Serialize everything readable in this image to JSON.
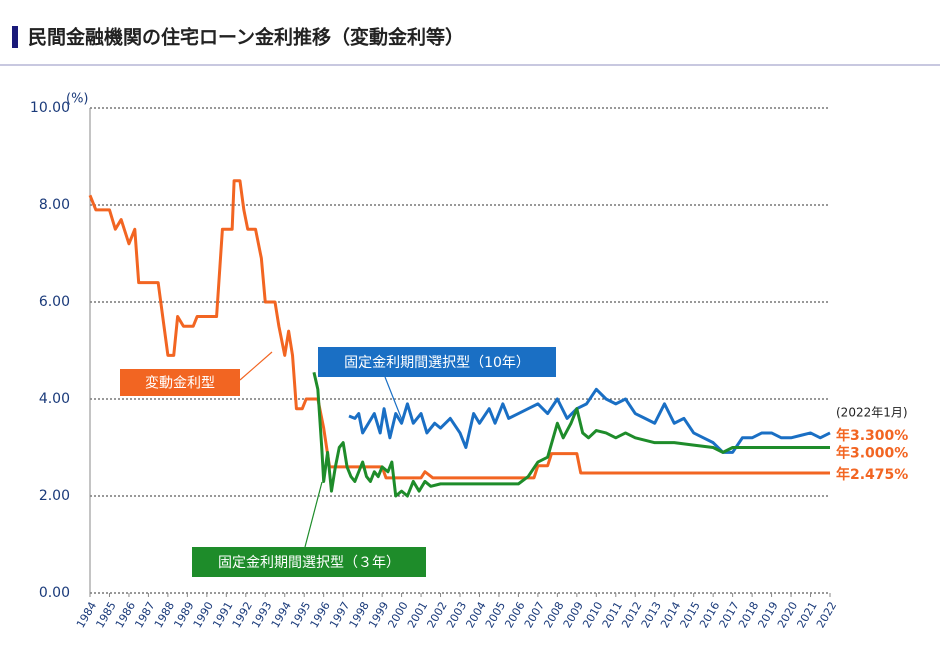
{
  "chart_data": {
    "type": "line",
    "title": "民間金融機関の住宅ローン金利推移（変動金利等）",
    "ylabel": "(%)",
    "date_note": "(2022年1月)",
    "end_labels": [
      {
        "text": "年3.300%",
        "value": 3.3
      },
      {
        "text": "年3.000%",
        "value": 3.0
      },
      {
        "text": "年2.475%",
        "value": 2.475
      }
    ],
    "end_label_color": "#f26522",
    "xlim": [
      1984,
      2022
    ],
    "xticks": [
      1984,
      1985,
      1986,
      1987,
      1988,
      1989,
      1990,
      1991,
      1992,
      1993,
      1994,
      1995,
      1996,
      1997,
      1998,
      1999,
      2000,
      2001,
      2002,
      2003,
      2004,
      2005,
      2006,
      2007,
      2008,
      2009,
      2010,
      2011,
      2012,
      2013,
      2014,
      2015,
      2016,
      2017,
      2018,
      2019,
      2020,
      2021,
      2022
    ],
    "ylim": [
      0,
      10
    ],
    "yticks": [
      {
        "value": 0,
        "label": "0.00"
      },
      {
        "value": 2,
        "label": "2.00"
      },
      {
        "value": 4,
        "label": "4.00"
      },
      {
        "value": 6,
        "label": "6.00"
      },
      {
        "value": 8,
        "label": "8.00"
      },
      {
        "value": 10,
        "label": "10.00"
      }
    ],
    "grid": true,
    "series": [
      {
        "name": "変動金利型",
        "color": "#f26522",
        "x": [
          1984.0,
          1984.3,
          1985.0,
          1985.3,
          1985.6,
          1986.0,
          1986.3,
          1986.5,
          1987.5,
          1987.8,
          1988.0,
          1988.3,
          1988.5,
          1988.8,
          1989.3,
          1989.5,
          1990.5,
          1990.8,
          1991.3,
          1991.4,
          1991.7,
          1991.9,
          1992.1,
          1992.5,
          1992.8,
          1993.0,
          1993.5,
          1993.7,
          1994.0,
          1994.2,
          1994.4,
          1994.6,
          1994.9,
          1995.1,
          1995.7,
          1996.0,
          1996.3,
          1999.0,
          1999.2,
          2001.0,
          2001.2,
          2001.6,
          2006.8,
          2007.0,
          2007.5,
          2007.7,
          2009.0,
          2009.2,
          2022.0
        ],
        "values": [
          8.2,
          7.9,
          7.9,
          7.5,
          7.7,
          7.2,
          7.5,
          6.4,
          6.4,
          5.5,
          4.9,
          4.9,
          5.7,
          5.5,
          5.5,
          5.7,
          5.7,
          7.5,
          7.5,
          8.5,
          8.5,
          7.9,
          7.5,
          7.5,
          6.9,
          6.0,
          6.0,
          5.5,
          4.9,
          5.4,
          4.9,
          3.8,
          3.8,
          4.0,
          4.0,
          3.4,
          2.6,
          2.6,
          2.375,
          2.375,
          2.5,
          2.375,
          2.375,
          2.625,
          2.625,
          2.875,
          2.875,
          2.475,
          2.475
        ]
      },
      {
        "name": "固定金利期間選択型（10年）",
        "color": "#1a6fc4",
        "x": [
          1997.3,
          1997.6,
          1997.8,
          1998.0,
          1998.3,
          1998.6,
          1998.9,
          1999.1,
          1999.4,
          1999.7,
          2000.0,
          2000.3,
          2000.6,
          2001.0,
          2001.3,
          2001.7,
          2002.0,
          2002.5,
          2003.0,
          2003.3,
          2003.7,
          2004.0,
          2004.5,
          2004.8,
          2005.2,
          2005.5,
          2006.0,
          2006.5,
          2007.0,
          2007.5,
          2008.0,
          2008.5,
          2009.0,
          2009.5,
          2010.0,
          2010.5,
          2011.0,
          2011.5,
          2012.0,
          2012.5,
          2013.0,
          2013.5,
          2014.0,
          2014.5,
          2015.0,
          2015.5,
          2016.0,
          2016.5,
          2017.0,
          2017.5,
          2018.0,
          2018.5,
          2019.0,
          2019.5,
          2020.0,
          2020.5,
          2021.0,
          2021.5,
          2022.0
        ],
        "values": [
          3.65,
          3.6,
          3.7,
          3.3,
          3.5,
          3.7,
          3.3,
          3.8,
          3.2,
          3.7,
          3.5,
          3.9,
          3.5,
          3.7,
          3.3,
          3.5,
          3.4,
          3.6,
          3.3,
          3.0,
          3.7,
          3.5,
          3.8,
          3.5,
          3.9,
          3.6,
          3.7,
          3.8,
          3.9,
          3.7,
          4.0,
          3.6,
          3.8,
          3.9,
          4.2,
          4.0,
          3.9,
          4.0,
          3.7,
          3.6,
          3.5,
          3.9,
          3.5,
          3.6,
          3.3,
          3.2,
          3.1,
          2.9,
          2.9,
          3.2,
          3.2,
          3.3,
          3.3,
          3.2,
          3.2,
          3.25,
          3.3,
          3.2,
          3.3
        ]
      },
      {
        "name": "固定金利期間選択型（３年）",
        "color": "#1e8c2a",
        "x": [
          1995.5,
          1995.7,
          1995.9,
          1996.0,
          1996.2,
          1996.4,
          1996.6,
          1996.8,
          1997.0,
          1997.2,
          1997.4,
          1997.6,
          1997.8,
          1998.0,
          1998.2,
          1998.4,
          1998.6,
          1998.8,
          1999.0,
          1999.3,
          1999.5,
          1999.7,
          2000.0,
          2000.3,
          2000.6,
          2000.9,
          2001.2,
          2001.5,
          2002.0,
          2004.0,
          2006.0,
          2006.5,
          2007.0,
          2007.5,
          2008.0,
          2008.3,
          2008.7,
          2009.0,
          2009.3,
          2009.6,
          2010.0,
          2010.5,
          2011.0,
          2011.5,
          2012.0,
          2013.0,
          2014.0,
          2015.0,
          2016.0,
          2016.5,
          2017.0,
          2018.0,
          2019.0,
          2020.0,
          2021.0,
          2022.0
        ],
        "values": [
          4.55,
          4.2,
          3.0,
          2.3,
          2.9,
          2.1,
          2.6,
          3.0,
          3.1,
          2.6,
          2.4,
          2.3,
          2.5,
          2.7,
          2.4,
          2.3,
          2.5,
          2.4,
          2.6,
          2.5,
          2.7,
          2.0,
          2.1,
          2.0,
          2.3,
          2.1,
          2.3,
          2.2,
          2.25,
          2.25,
          2.25,
          2.4,
          2.7,
          2.8,
          3.5,
          3.2,
          3.5,
          3.8,
          3.3,
          3.2,
          3.35,
          3.3,
          3.2,
          3.3,
          3.2,
          3.1,
          3.1,
          3.05,
          3.0,
          2.9,
          3.0,
          3.0,
          3.0,
          3.0,
          3.0,
          3.0
        ]
      }
    ]
  }
}
